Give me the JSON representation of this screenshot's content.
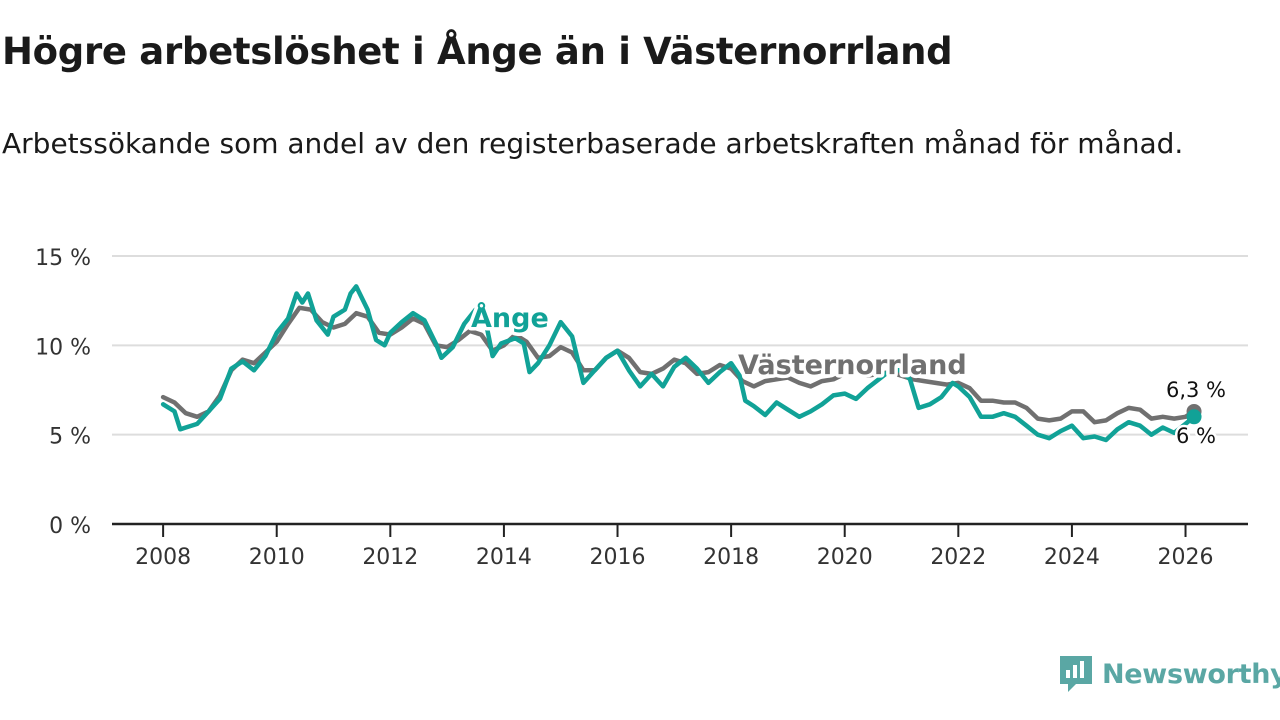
{
  "header": {
    "title": "Högre arbetslöshet i Ånge än i Västernorrland",
    "subtitle": "Arbetssökande som andel av den registerbaserade arbetskraften månad för månad."
  },
  "brand": {
    "name": "Newsworthy"
  },
  "colors": {
    "ange": "#11a297",
    "vasternorrland": "#707070",
    "grid": "#dddddd",
    "axis": "#222222",
    "brand": "#5aa7a4"
  },
  "chart_data": {
    "type": "line",
    "title": "Högre arbetslöshet i Ånge än i Västernorrland",
    "xlabel": "",
    "ylabel": "",
    "xlim": [
      2007.1,
      2027.1
    ],
    "ylim": [
      0,
      15
    ],
    "x_ticks": [
      2008,
      2010,
      2012,
      2014,
      2016,
      2018,
      2020,
      2022,
      2024,
      2026
    ],
    "x_tick_labels": [
      "2008",
      "2010",
      "2012",
      "2014",
      "2016",
      "2018",
      "2020",
      "2022",
      "2024",
      "2026"
    ],
    "y_ticks": [
      0,
      5,
      10,
      15
    ],
    "y_tick_labels": [
      "0 %",
      "5 %",
      "10 %",
      "15 %"
    ],
    "grid": true,
    "series": [
      {
        "name": "Västernorrland",
        "label": "Västernorrland",
        "end_label": "6,3 %",
        "color": "#707070",
        "points": [
          [
            2008.0,
            7.1
          ],
          [
            2008.2,
            6.8
          ],
          [
            2008.4,
            6.2
          ],
          [
            2008.6,
            6.0
          ],
          [
            2008.8,
            6.3
          ],
          [
            2009.0,
            7.2
          ],
          [
            2009.2,
            8.6
          ],
          [
            2009.4,
            9.2
          ],
          [
            2009.6,
            9.0
          ],
          [
            2009.8,
            9.6
          ],
          [
            2010.0,
            10.2
          ],
          [
            2010.2,
            11.2
          ],
          [
            2010.4,
            12.1
          ],
          [
            2010.6,
            12.0
          ],
          [
            2010.8,
            11.3
          ],
          [
            2011.0,
            11.0
          ],
          [
            2011.2,
            11.2
          ],
          [
            2011.4,
            11.8
          ],
          [
            2011.6,
            11.6
          ],
          [
            2011.8,
            10.7
          ],
          [
            2012.0,
            10.6
          ],
          [
            2012.2,
            11.0
          ],
          [
            2012.4,
            11.5
          ],
          [
            2012.6,
            11.2
          ],
          [
            2012.8,
            10.0
          ],
          [
            2013.0,
            9.9
          ],
          [
            2013.2,
            10.3
          ],
          [
            2013.4,
            10.8
          ],
          [
            2013.6,
            10.6
          ],
          [
            2013.8,
            9.7
          ],
          [
            2014.0,
            10.0
          ],
          [
            2014.2,
            10.6
          ],
          [
            2014.4,
            10.2
          ],
          [
            2014.6,
            9.3
          ],
          [
            2014.8,
            9.4
          ],
          [
            2015.0,
            9.9
          ],
          [
            2015.2,
            9.6
          ],
          [
            2015.4,
            8.6
          ],
          [
            2015.6,
            8.6
          ],
          [
            2015.8,
            9.3
          ],
          [
            2016.0,
            9.7
          ],
          [
            2016.2,
            9.3
          ],
          [
            2016.4,
            8.5
          ],
          [
            2016.6,
            8.4
          ],
          [
            2016.8,
            8.7
          ],
          [
            2017.0,
            9.2
          ],
          [
            2017.2,
            9.0
          ],
          [
            2017.4,
            8.4
          ],
          [
            2017.6,
            8.5
          ],
          [
            2017.8,
            8.9
          ],
          [
            2018.0,
            8.7
          ],
          [
            2018.2,
            8.0
          ],
          [
            2018.4,
            7.7
          ],
          [
            2018.6,
            8.0
          ],
          [
            2018.8,
            8.1
          ],
          [
            2019.0,
            8.2
          ],
          [
            2019.2,
            7.9
          ],
          [
            2019.4,
            7.7
          ],
          [
            2019.6,
            8.0
          ],
          [
            2019.8,
            8.1
          ],
          [
            2020.0,
            8.4
          ],
          [
            2020.2,
            8.5
          ],
          [
            2020.4,
            8.3
          ],
          [
            2020.6,
            8.4
          ],
          [
            2020.8,
            8.5
          ],
          [
            2021.0,
            8.3
          ],
          [
            2021.2,
            8.1
          ],
          [
            2021.4,
            8.0
          ],
          [
            2021.6,
            7.9
          ],
          [
            2021.8,
            7.8
          ],
          [
            2022.0,
            7.9
          ],
          [
            2022.2,
            7.6
          ],
          [
            2022.4,
            6.9
          ],
          [
            2022.6,
            6.9
          ],
          [
            2022.8,
            6.8
          ],
          [
            2023.0,
            6.8
          ],
          [
            2023.2,
            6.5
          ],
          [
            2023.4,
            5.9
          ],
          [
            2023.6,
            5.8
          ],
          [
            2023.8,
            5.9
          ],
          [
            2024.0,
            6.3
          ],
          [
            2024.2,
            6.3
          ],
          [
            2024.4,
            5.7
          ],
          [
            2024.6,
            5.8
          ],
          [
            2024.8,
            6.2
          ],
          [
            2025.0,
            6.5
          ],
          [
            2025.2,
            6.4
          ],
          [
            2025.4,
            5.9
          ],
          [
            2025.6,
            6.0
          ],
          [
            2025.8,
            5.9
          ],
          [
            2026.0,
            6.0
          ],
          [
            2026.15,
            6.3
          ]
        ]
      },
      {
        "name": "Ånge",
        "label": "Ånge",
        "end_label": "6 %",
        "color": "#11a297",
        "points": [
          [
            2008.0,
            6.7
          ],
          [
            2008.2,
            6.3
          ],
          [
            2008.3,
            5.3
          ],
          [
            2008.4,
            5.4
          ],
          [
            2008.6,
            5.6
          ],
          [
            2008.8,
            6.3
          ],
          [
            2009.0,
            7.0
          ],
          [
            2009.2,
            8.7
          ],
          [
            2009.4,
            9.1
          ],
          [
            2009.6,
            8.6
          ],
          [
            2009.8,
            9.4
          ],
          [
            2010.0,
            10.7
          ],
          [
            2010.2,
            11.5
          ],
          [
            2010.35,
            12.9
          ],
          [
            2010.45,
            12.4
          ],
          [
            2010.55,
            12.9
          ],
          [
            2010.7,
            11.4
          ],
          [
            2010.9,
            10.6
          ],
          [
            2011.0,
            11.6
          ],
          [
            2011.2,
            12.0
          ],
          [
            2011.3,
            12.9
          ],
          [
            2011.4,
            13.3
          ],
          [
            2011.6,
            12.0
          ],
          [
            2011.75,
            10.3
          ],
          [
            2011.9,
            10.0
          ],
          [
            2012.0,
            10.7
          ],
          [
            2012.2,
            11.3
          ],
          [
            2012.4,
            11.8
          ],
          [
            2012.6,
            11.4
          ],
          [
            2012.8,
            10.1
          ],
          [
            2012.9,
            9.3
          ],
          [
            2013.1,
            9.9
          ],
          [
            2013.3,
            11.2
          ],
          [
            2013.5,
            12.0
          ],
          [
            2013.7,
            11.0
          ],
          [
            2013.8,
            9.4
          ],
          [
            2013.95,
            10.1
          ],
          [
            2014.2,
            10.4
          ],
          [
            2014.35,
            10.1
          ],
          [
            2014.45,
            8.5
          ],
          [
            2014.6,
            9.0
          ],
          [
            2014.8,
            10.0
          ],
          [
            2015.0,
            11.3
          ],
          [
            2015.2,
            10.5
          ],
          [
            2015.4,
            7.9
          ],
          [
            2015.6,
            8.6
          ],
          [
            2015.8,
            9.3
          ],
          [
            2016.0,
            9.7
          ],
          [
            2016.2,
            8.6
          ],
          [
            2016.4,
            7.7
          ],
          [
            2016.6,
            8.4
          ],
          [
            2016.8,
            7.7
          ],
          [
            2017.0,
            8.8
          ],
          [
            2017.2,
            9.3
          ],
          [
            2017.4,
            8.7
          ],
          [
            2017.6,
            7.9
          ],
          [
            2017.8,
            8.5
          ],
          [
            2018.0,
            9.0
          ],
          [
            2018.15,
            8.3
          ],
          [
            2018.25,
            6.9
          ],
          [
            2018.4,
            6.6
          ],
          [
            2018.6,
            6.1
          ],
          [
            2018.8,
            6.8
          ],
          [
            2019.0,
            6.4
          ],
          [
            2019.2,
            6.0
          ],
          [
            2019.4,
            6.3
          ],
          [
            2019.6,
            6.7
          ],
          [
            2019.8,
            7.2
          ],
          [
            2020.0,
            7.3
          ],
          [
            2020.2,
            7.0
          ],
          [
            2020.4,
            7.6
          ],
          [
            2020.6,
            8.1
          ],
          [
            2020.8,
            8.6
          ],
          [
            2021.0,
            8.6
          ],
          [
            2021.15,
            8.1
          ],
          [
            2021.3,
            6.5
          ],
          [
            2021.5,
            6.7
          ],
          [
            2021.7,
            7.1
          ],
          [
            2021.9,
            7.9
          ],
          [
            2022.0,
            7.7
          ],
          [
            2022.2,
            7.1
          ],
          [
            2022.4,
            6.0
          ],
          [
            2022.6,
            6.0
          ],
          [
            2022.8,
            6.2
          ],
          [
            2023.0,
            6.0
          ],
          [
            2023.2,
            5.5
          ],
          [
            2023.4,
            5.0
          ],
          [
            2023.6,
            4.8
          ],
          [
            2023.8,
            5.2
          ],
          [
            2024.0,
            5.5
          ],
          [
            2024.2,
            4.8
          ],
          [
            2024.4,
            4.9
          ],
          [
            2024.6,
            4.7
          ],
          [
            2024.8,
            5.3
          ],
          [
            2025.0,
            5.7
          ],
          [
            2025.2,
            5.5
          ],
          [
            2025.4,
            5.0
          ],
          [
            2025.6,
            5.4
          ],
          [
            2025.8,
            5.1
          ],
          [
            2026.0,
            5.6
          ],
          [
            2026.15,
            6.0
          ]
        ]
      }
    ]
  }
}
